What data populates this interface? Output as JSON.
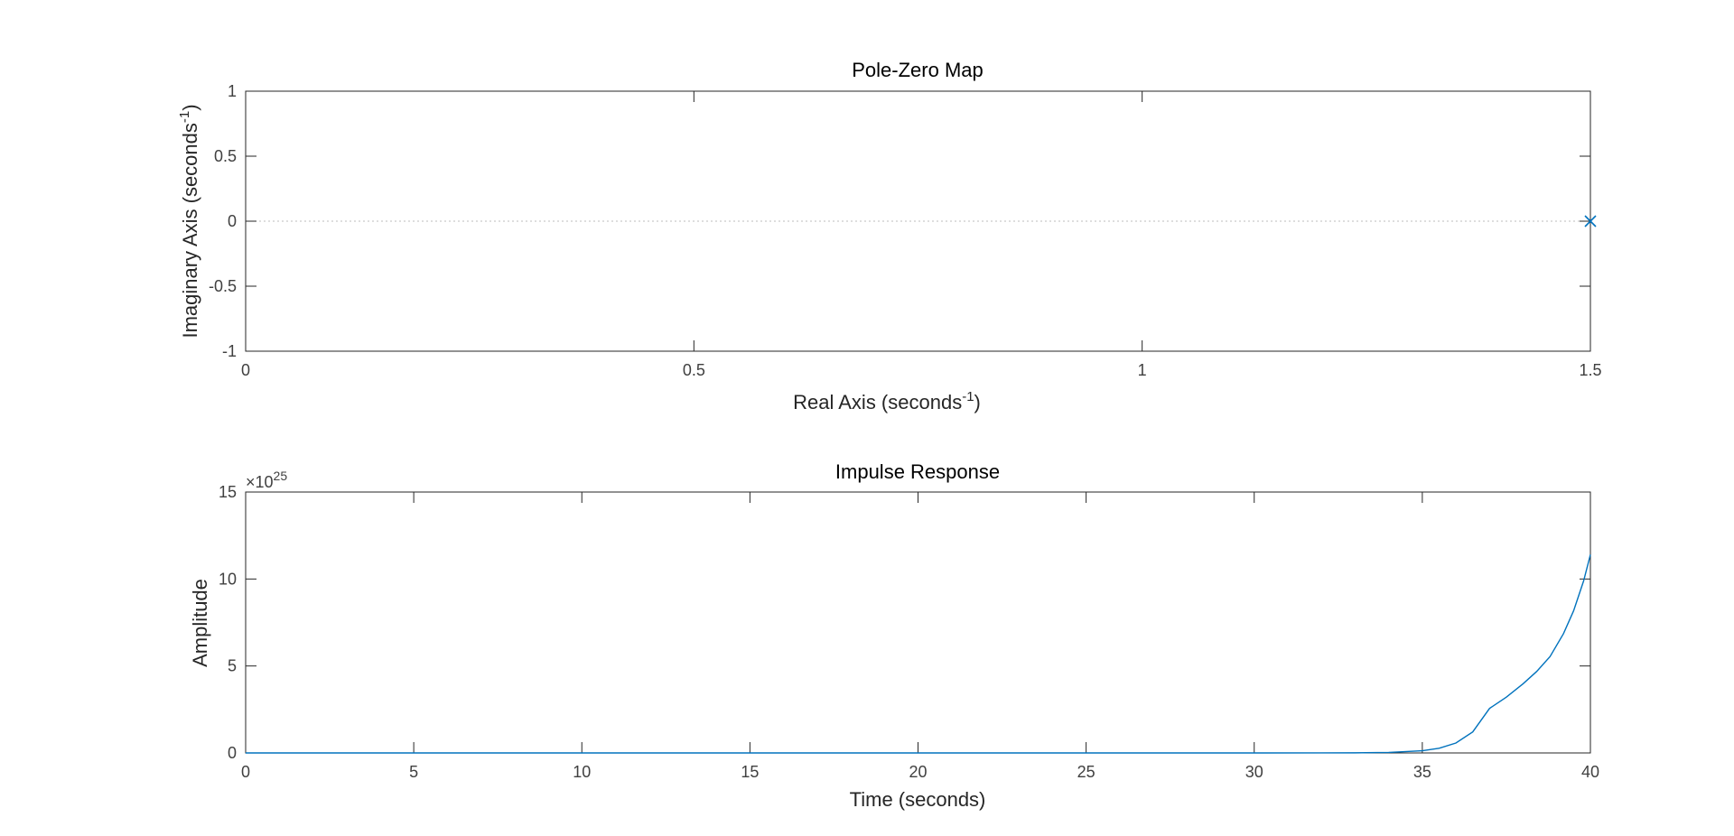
{
  "chart_data": [
    {
      "type": "scatter",
      "title": "Pole-Zero Map",
      "xlabel": "Real Axis (seconds",
      "xlabel_sup": "-1",
      "xlabel_end": ")",
      "ylabel": "Imaginary Axis (seconds",
      "ylabel_sup": "-1",
      "ylabel_end": ")",
      "xlim": [
        0,
        1.5
      ],
      "ylim": [
        -1,
        1
      ],
      "xticks": [
        0,
        0.5,
        1,
        1.5
      ],
      "xtick_labels": [
        "0",
        "0.5",
        "1",
        "1.5"
      ],
      "yticks": [
        -1,
        -0.5,
        0,
        0.5,
        1
      ],
      "ytick_labels": [
        "-1",
        "-0.5",
        "0",
        "0.5",
        "1"
      ],
      "grid": false,
      "zero_reference_line": true,
      "poles": [
        {
          "real": 1.5,
          "imag": 0
        }
      ],
      "zeros": [],
      "marker": "x",
      "color": "#0072bd"
    },
    {
      "type": "line",
      "title": "Impulse Response",
      "xlabel": "Time (seconds)",
      "ylabel": "Amplitude",
      "multiplier_base": "×10",
      "multiplier_exp": "25",
      "xlim": [
        0,
        40
      ],
      "ylim": [
        0,
        15
      ],
      "xticks": [
        0,
        5,
        10,
        15,
        20,
        25,
        30,
        35,
        40
      ],
      "xtick_labels": [
        "0",
        "5",
        "10",
        "15",
        "20",
        "25",
        "30",
        "35",
        "40"
      ],
      "yticks": [
        0,
        5,
        10,
        15
      ],
      "ytick_labels": [
        "0",
        "5",
        "10",
        "15"
      ],
      "grid": false,
      "color": "#0072bd",
      "series": [
        {
          "x": [
            0,
            4,
            8,
            12,
            16,
            20,
            24,
            28,
            30,
            32,
            33,
            34,
            35,
            35.5,
            36,
            36.5,
            37,
            37.5,
            38,
            38.4,
            38.8,
            39.2,
            39.5,
            39.8,
            40
          ],
          "y": [
            0,
            0,
            0,
            0,
            0,
            0,
            0,
            0,
            0.0002,
            0.0014,
            0.0063,
            0.0284,
            0.127,
            0.269,
            0.57,
            1.21,
            2.56,
            3.21,
            3.98,
            4.68,
            5.54,
            6.86,
            8.17,
            9.9,
            11.4
          ]
        }
      ]
    }
  ]
}
